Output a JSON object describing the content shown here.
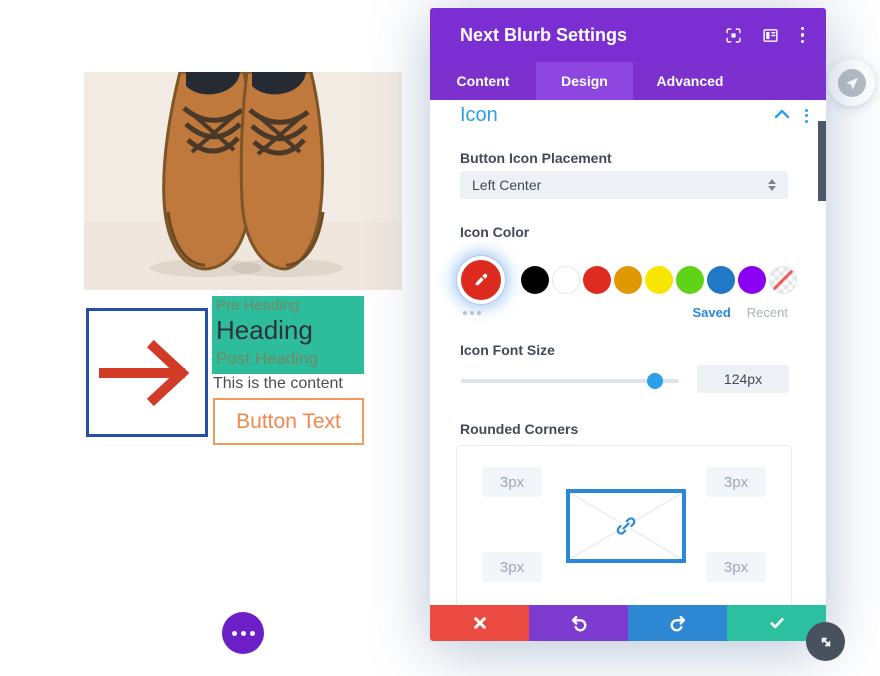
{
  "preview": {
    "blurb": {
      "pre_heading": "Pre Heading",
      "heading": "Heading",
      "post_heading": "Post Heading",
      "content": "This is the content",
      "button_label": "Button Text"
    },
    "colors": {
      "teal_bg": "#2dbd9d",
      "arrow_red": "#d23b28",
      "icon_box_border": "#2451a5",
      "button_border": "#f2995f",
      "button_text": "#f0884e"
    }
  },
  "panel": {
    "title": "Next Blurb Settings",
    "tabs": [
      {
        "label": "Content",
        "active": false
      },
      {
        "label": "Design",
        "active": true
      },
      {
        "label": "Advanced",
        "active": false
      }
    ],
    "section_title": "Icon",
    "placement": {
      "label": "Button Icon Placement",
      "value": "Left Center"
    },
    "icon_color": {
      "label": "Icon Color",
      "active_swatch": "eyedropper-on-red",
      "swatches": [
        "#000000",
        "#ffffff",
        "#e02b20",
        "#e09900",
        "#f7e600",
        "#5fd317",
        "#2178c4",
        "#8a00f0",
        "none"
      ],
      "saved_label": "Saved",
      "recent_label": "Recent"
    },
    "font_size": {
      "label": "Icon Font Size",
      "value": "124px",
      "percent": 89
    },
    "rounded_corners": {
      "label": "Rounded Corners",
      "values": [
        "3px",
        "3px",
        "3px",
        "3px"
      ]
    },
    "colors": {
      "header_bg": "#7b2fd2",
      "active_tab_bg": "#8d46df",
      "accent_blue": "#2d9fe8",
      "link_blue": "#2b87d9",
      "discard_red": "#ec4b42",
      "undo_purple": "#7e3bd0",
      "redo_blue": "#2e87d3",
      "save_green": "#2ac0a0"
    },
    "icons": {
      "header": [
        "focus-icon",
        "layout-icon",
        "kebab-menu-icon"
      ],
      "section": [
        "chevron-up-icon",
        "kebab-menu-icon"
      ],
      "footer": [
        "close-icon",
        "undo-icon",
        "redo-icon",
        "check-icon"
      ]
    }
  },
  "floating_icons": [
    "globe-icon",
    "more-dots-icon",
    "resize-arrow-icon"
  ]
}
